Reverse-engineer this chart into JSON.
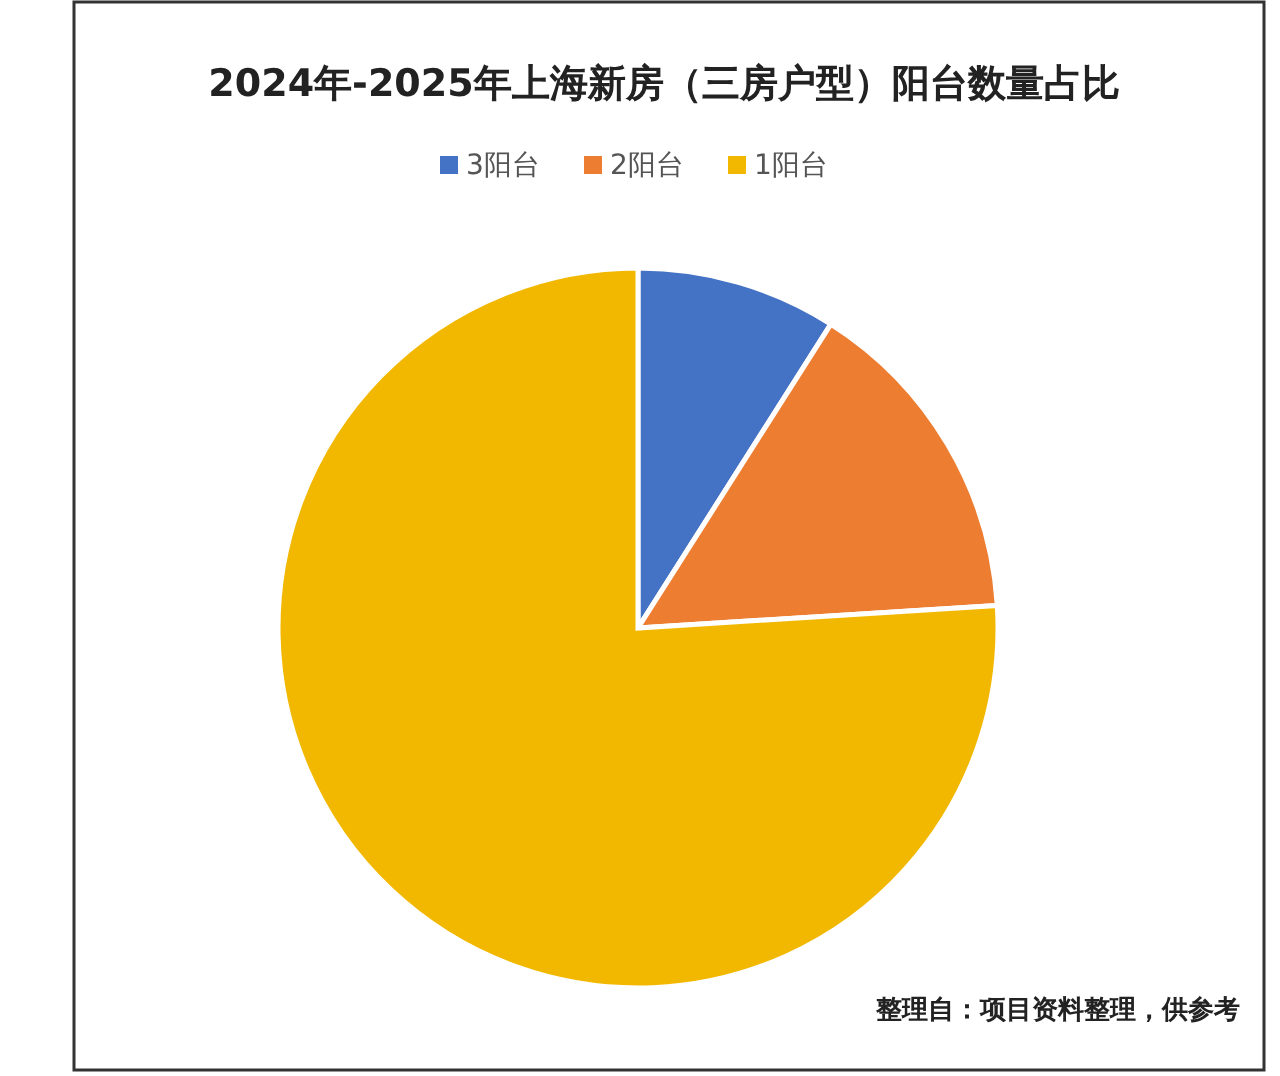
{
  "chart_data": {
    "type": "pie",
    "title": "2024年-2025年上海新房（三房户型）阳台数量占比",
    "categories": [
      "3阳台",
      "2阳台",
      "1阳台"
    ],
    "values": [
      9,
      15,
      76
    ],
    "colors": [
      "#4472c4",
      "#ed7d31",
      "#f2b800"
    ],
    "legend": "top",
    "annotations": [
      "整理自：项目资料整理，供参考"
    ]
  }
}
